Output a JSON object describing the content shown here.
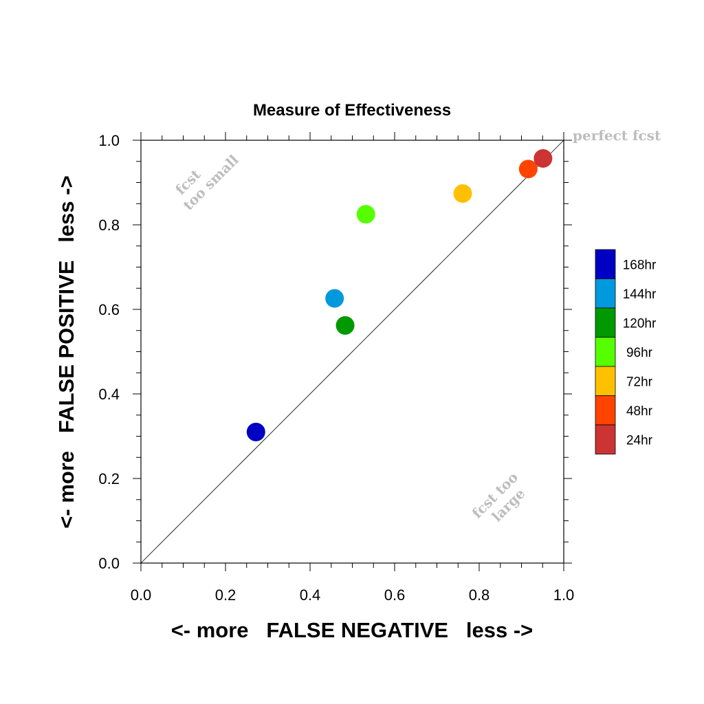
{
  "chart_data": {
    "type": "scatter",
    "title": "Measure of Effectiveness",
    "xlabel": "<- more   FALSE NEGATIVE   less ->",
    "ylabel": "<- more   FALSE POSITIVE   less ->",
    "xlim": [
      0,
      1
    ],
    "ylim": [
      0,
      1
    ],
    "xticks": [
      "0.0",
      "0.2",
      "0.4",
      "0.6",
      "0.8",
      "1.0"
    ],
    "yticks": [
      "0.0",
      "0.2",
      "0.4",
      "0.6",
      "0.8",
      "1.0"
    ],
    "grid": false,
    "reference_line": "diagonal y = x",
    "legend_position": "right",
    "annotations": {
      "perfect": "perfect fcst",
      "too_small": [
        "fcst",
        "too small"
      ],
      "too_large": [
        "fcst too",
        "large"
      ]
    },
    "series": [
      {
        "name": "168hr",
        "color": "#0000c4",
        "x": 0.272,
        "y": 0.31
      },
      {
        "name": "144hr",
        "color": "#0099dd",
        "x": 0.458,
        "y": 0.626
      },
      {
        "name": "120hr",
        "color": "#009900",
        "x": 0.483,
        "y": 0.562
      },
      {
        "name": "96hr",
        "color": "#55ff00",
        "x": 0.532,
        "y": 0.825
      },
      {
        "name": "72hr",
        "color": "#ffc000",
        "x": 0.761,
        "y": 0.874
      },
      {
        "name": "48hr",
        "color": "#ff4400",
        "x": 0.916,
        "y": 0.932
      },
      {
        "name": "24hr",
        "color": "#cc3333",
        "x": 0.951,
        "y": 0.957
      }
    ]
  }
}
